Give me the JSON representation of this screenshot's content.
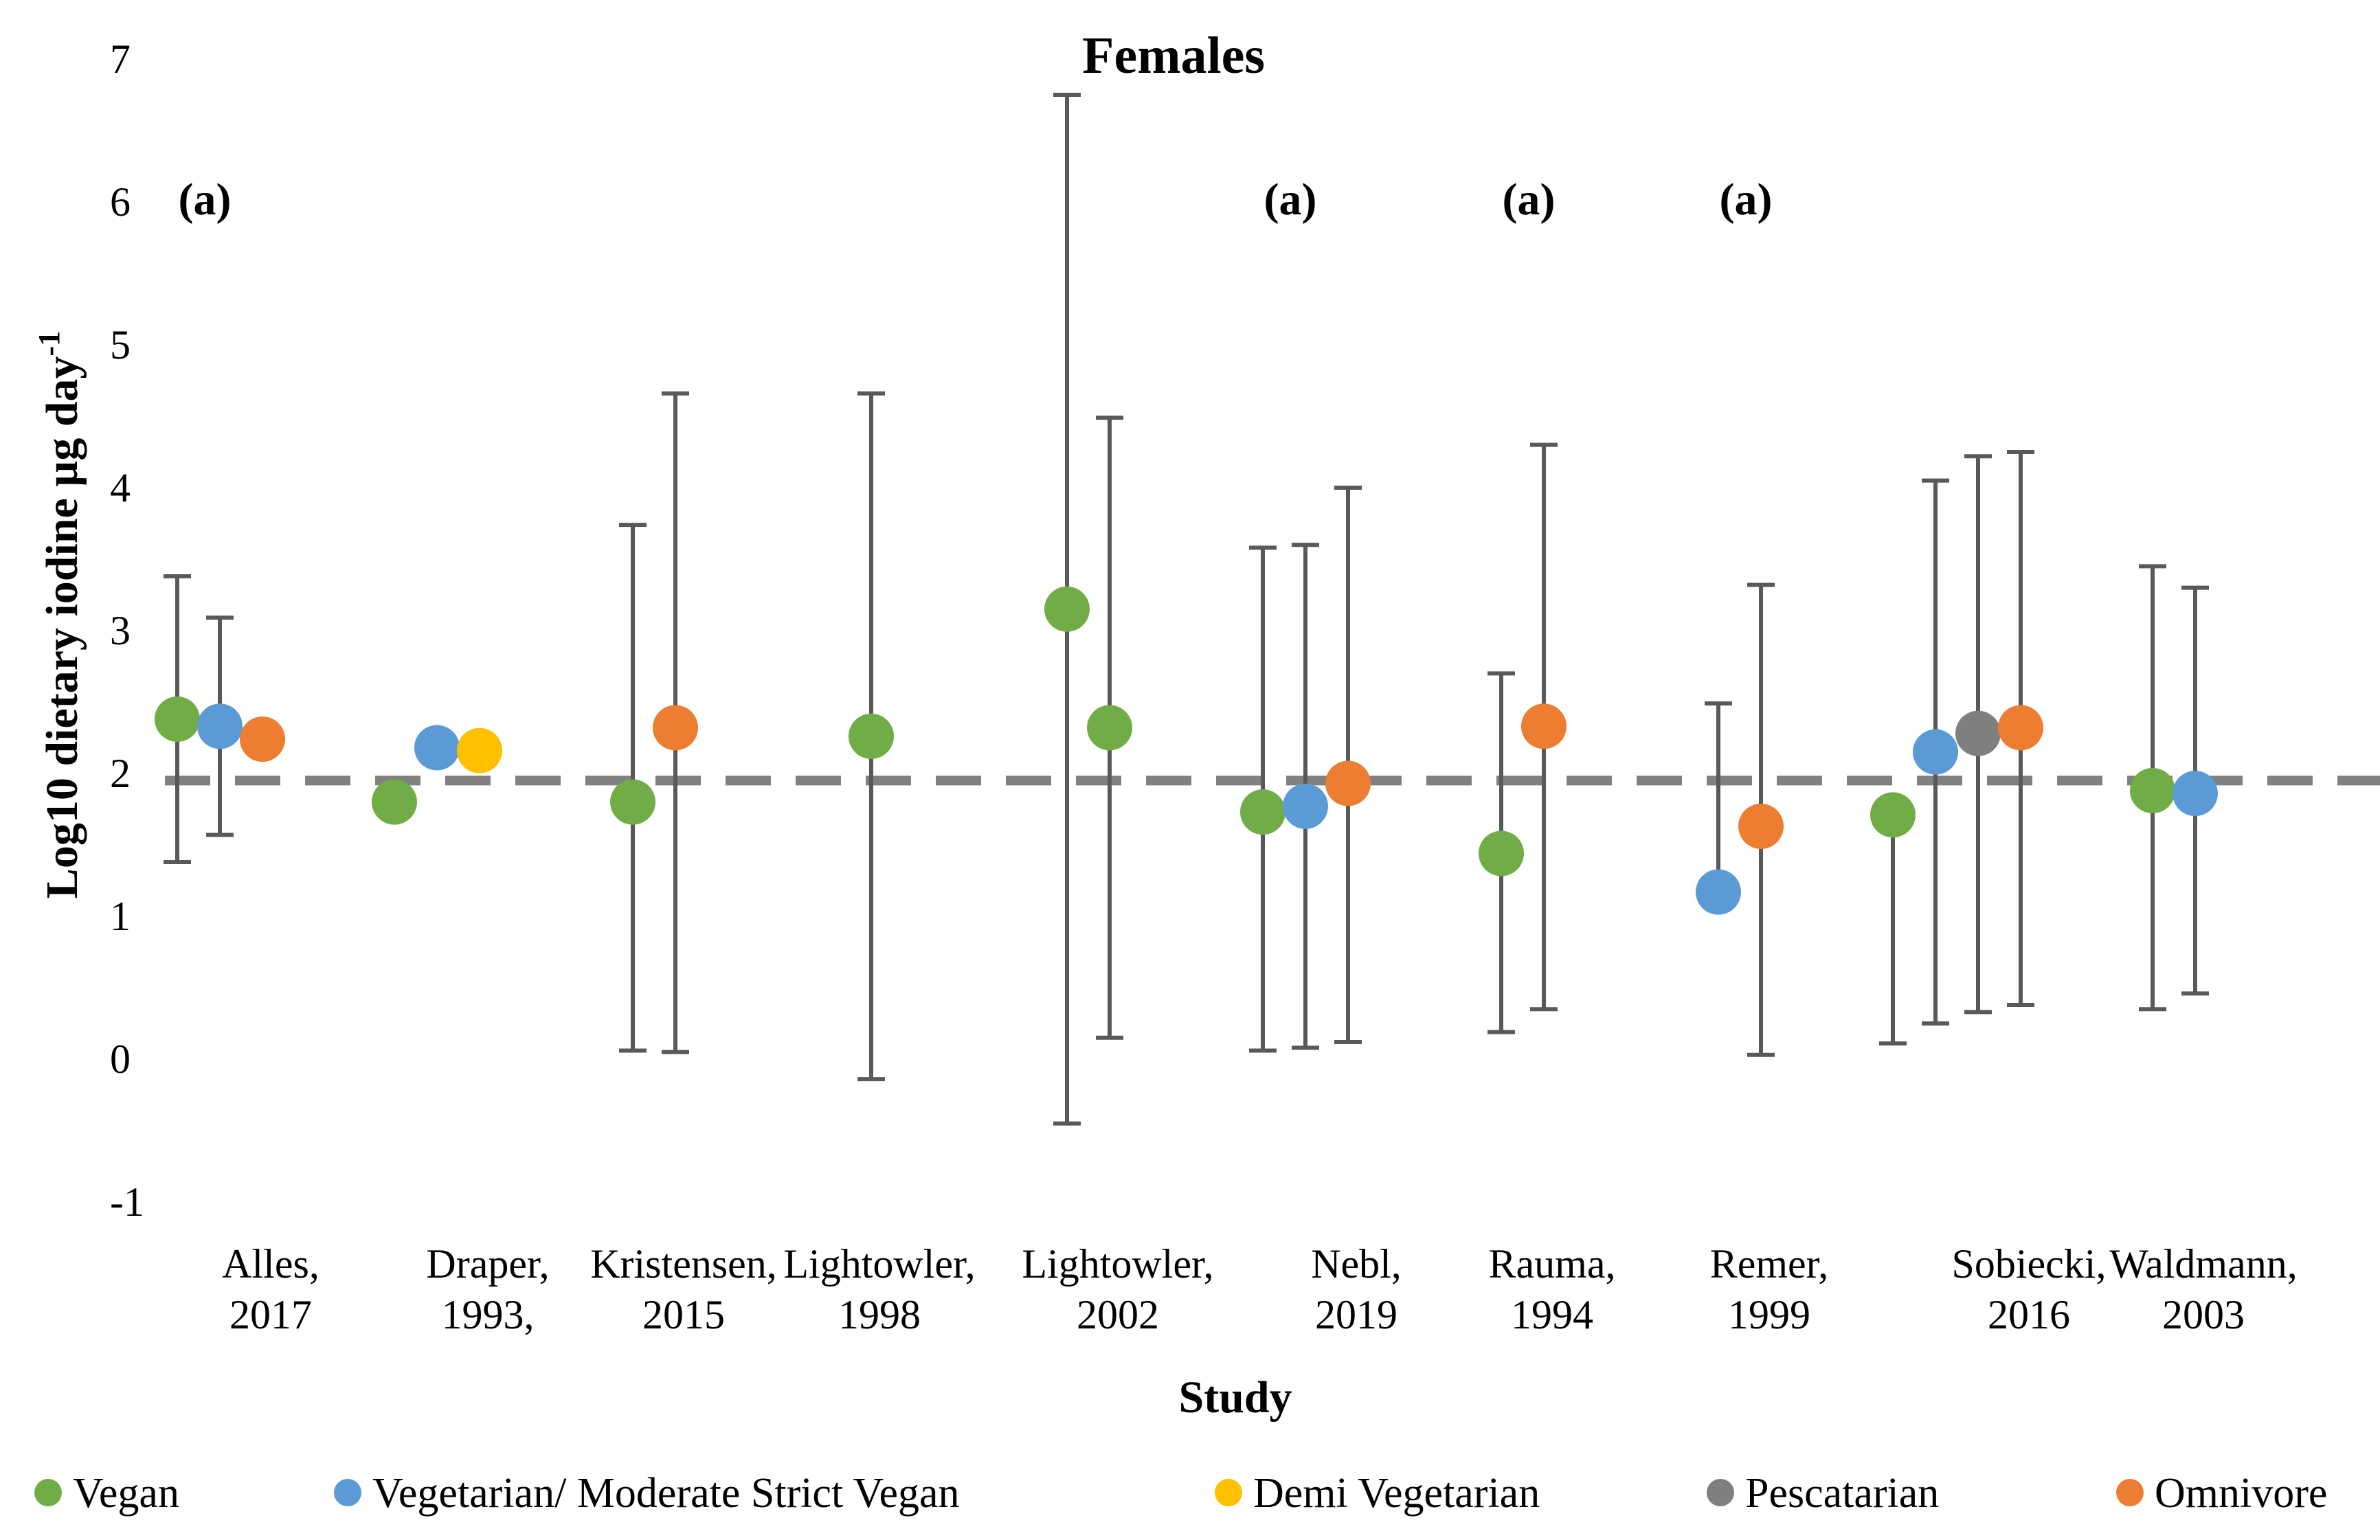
{
  "chart_data": {
    "type": "scatter",
    "title": "Females",
    "xlabel": "Study",
    "ylabel": "Log10 dietary iodine µg day",
    "ylabel_superscript": "-1",
    "ylim": [
      -1,
      7
    ],
    "yticks": [
      "7",
      "6",
      "5",
      "4",
      "3",
      "2",
      "1",
      "0",
      "-1"
    ],
    "reference_line_y": 1.95,
    "colors": {
      "Vegan": "#70ad47",
      "Vegetarian/ Moderate Strict Vegan": "#5b9bd5",
      "Demi Vegetarian": "#ffc000",
      "Pescatarian": "#7f7f7f",
      "Omnivore": "#ed7d31",
      "error_bar": "#595959",
      "reference_line": "#808080"
    },
    "studies": [
      {
        "label": [
          "Alles,",
          "2017"
        ],
        "note": "(a)",
        "points": [
          {
            "series": "Vegan",
            "y": 2.38,
            "low": 1.38,
            "high": 3.38
          },
          {
            "series": "Vegetarian/ Moderate Strict Vegan",
            "y": 2.33,
            "low": 1.57,
            "high": 3.09
          },
          {
            "series": "Omnivore",
            "y": 2.24
          }
        ]
      },
      {
        "label": [
          "Draper,",
          "1993,"
        ],
        "note": "",
        "points": [
          {
            "series": "Vegan",
            "y": 1.8
          },
          {
            "series": "Vegetarian/ Moderate Strict Vegan",
            "y": 2.18
          },
          {
            "series": "Demi Vegetarian",
            "y": 2.16
          }
        ]
      },
      {
        "label": [
          "Kristensen,",
          "2015"
        ],
        "note": "",
        "points": [
          {
            "series": "Vegan",
            "y": 1.8,
            "low": 0.06,
            "high": 3.74
          },
          {
            "series": "Omnivore",
            "y": 2.32,
            "low": 0.05,
            "high": 4.66
          }
        ]
      },
      {
        "label": [
          "Lightowler,",
          "1998"
        ],
        "note": "",
        "points": [
          {
            "series": "Vegan",
            "y": 2.26,
            "low": -0.14,
            "high": 4.66
          }
        ]
      },
      {
        "label": [
          "Lightowler,",
          "2002"
        ],
        "note": "",
        "points": [
          {
            "series": "Vegan",
            "y": 3.15,
            "low": -0.45,
            "high": 6.75
          },
          {
            "series": "Vegan",
            "y": 2.32,
            "low": 0.15,
            "high": 4.49
          }
        ]
      },
      {
        "label": [
          "Nebl,",
          "2019"
        ],
        "note": "(a)",
        "points": [
          {
            "series": "Vegan",
            "y": 1.73,
            "low": 0.06,
            "high": 3.58
          },
          {
            "series": "Vegetarian/ Moderate Strict Vegan",
            "y": 1.77,
            "low": 0.08,
            "high": 3.6
          },
          {
            "series": "Omnivore",
            "y": 1.93,
            "low": 0.12,
            "high": 4.0
          }
        ]
      },
      {
        "label": [
          "Rauma,",
          "1994"
        ],
        "note": "(a)",
        "points": [
          {
            "series": "Vegan",
            "y": 1.44,
            "low": 0.19,
            "high": 2.7
          },
          {
            "series": "Omnivore",
            "y": 2.33,
            "low": 0.35,
            "high": 4.3
          }
        ]
      },
      {
        "label": [
          "Remer,",
          "1999"
        ],
        "note": "(a)",
        "points": [
          {
            "series": "Vegetarian/ Moderate Strict Vegan",
            "y": 1.17,
            "low": "",
            "high": 2.49
          },
          {
            "series": "Omnivore",
            "y": 1.63,
            "low": 0.03,
            "high": 3.32
          }
        ]
      },
      {
        "label": [
          "Sobiecki,",
          "2016"
        ],
        "note": "",
        "points": [
          {
            "series": "Vegan",
            "y": 1.71,
            "low": 0.11,
            "high": 1.71
          },
          {
            "series": "Vegetarian/ Moderate Strict Vegan",
            "y": 2.15,
            "low": 0.25,
            "high": 4.05
          },
          {
            "series": "Pescatarian",
            "y": 2.28,
            "low": 0.33,
            "high": 4.22
          },
          {
            "series": "Omnivore",
            "y": 2.32,
            "low": 0.38,
            "high": 4.25
          }
        ]
      },
      {
        "label": [
          "Waldmann,",
          "2003"
        ],
        "note": "",
        "points": [
          {
            "series": "Vegan",
            "y": 1.88,
            "low": 0.35,
            "high": 3.45
          },
          {
            "series": "Vegetarian/ Moderate Strict Vegan",
            "y": 1.86,
            "low": 0.46,
            "high": 3.3
          }
        ]
      }
    ],
    "legend": [
      "Vegan",
      "Vegetarian/ Moderate Strict Vegan",
      "Demi Vegetarian",
      "Pescatarian",
      "Omnivore"
    ],
    "legend_position": "bottom"
  }
}
